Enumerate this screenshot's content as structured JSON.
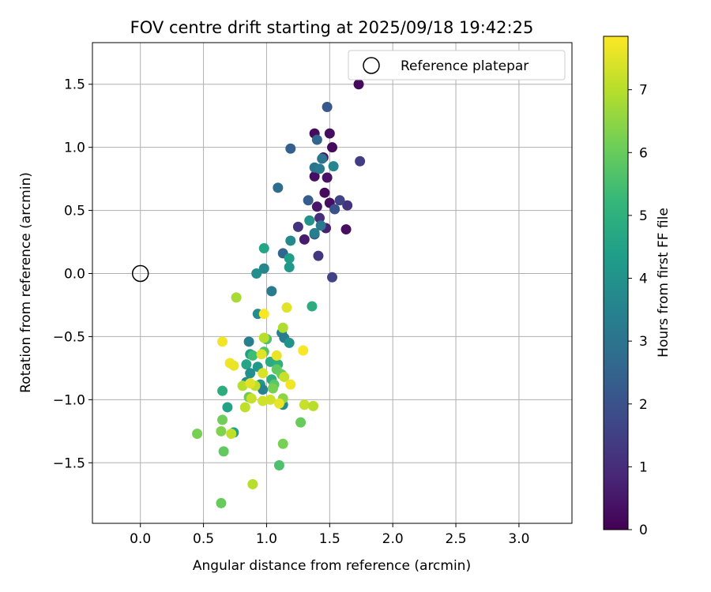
{
  "chart_data": {
    "type": "scatter",
    "title": "FOV centre drift starting at 2025/09/18 19:42:25",
    "xlabel": "Angular distance from reference (arcmin)",
    "ylabel": "Rotation from reference (arcmin)",
    "xlim": [
      -0.38,
      3.42
    ],
    "ylim": [
      -1.98,
      1.83
    ],
    "xticks": [
      "0.0",
      "0.5",
      "1.0",
      "1.5",
      "2.0",
      "2.5",
      "3.0"
    ],
    "yticks": [
      "-1.5",
      "-1.0",
      "-0.5",
      "0.0",
      "0.5",
      "1.0",
      "1.5"
    ],
    "grid": true,
    "legend": {
      "position": "top-right",
      "label": "Reference platepar"
    },
    "reference_point": {
      "x": 0.0,
      "y": 0.0
    },
    "colorbar": {
      "label": "Hours from first FF file",
      "min": 0,
      "max": 7.85,
      "ticks": [
        "0",
        "1",
        "2",
        "3",
        "4",
        "5",
        "6",
        "7"
      ],
      "colormap": [
        "#440154",
        "#482878",
        "#3e4989",
        "#31688e",
        "#26828e",
        "#1f9e89",
        "#35b779",
        "#6ece58",
        "#b5de2b",
        "#fde725"
      ]
    },
    "points": [
      {
        "x": 1.73,
        "y": 1.5,
        "t": 0.2
      },
      {
        "x": 1.38,
        "y": 1.11,
        "t": 0.2
      },
      {
        "x": 1.5,
        "y": 1.11,
        "t": 0.3
      },
      {
        "x": 1.52,
        "y": 1.0,
        "t": 0.2
      },
      {
        "x": 1.45,
        "y": 0.92,
        "t": 0.4
      },
      {
        "x": 1.38,
        "y": 0.77,
        "t": 0.3
      },
      {
        "x": 1.48,
        "y": 0.76,
        "t": 0.4
      },
      {
        "x": 1.46,
        "y": 0.64,
        "t": 0.2
      },
      {
        "x": 1.5,
        "y": 0.56,
        "t": 0.3
      },
      {
        "x": 1.4,
        "y": 0.53,
        "t": 0.5
      },
      {
        "x": 1.42,
        "y": 0.44,
        "t": 1.0
      },
      {
        "x": 1.3,
        "y": 0.27,
        "t": 0.6
      },
      {
        "x": 1.47,
        "y": 0.36,
        "t": 0.7
      },
      {
        "x": 1.63,
        "y": 0.35,
        "t": 0.3
      },
      {
        "x": 1.25,
        "y": 0.37,
        "t": 1.2
      },
      {
        "x": 1.41,
        "y": 0.14,
        "t": 1.3
      },
      {
        "x": 1.52,
        "y": -0.03,
        "t": 1.6
      },
      {
        "x": 1.74,
        "y": 0.89,
        "t": 1.4
      },
      {
        "x": 1.64,
        "y": 0.54,
        "t": 1.2
      },
      {
        "x": 1.58,
        "y": 0.58,
        "t": 1.6
      },
      {
        "x": 1.54,
        "y": 0.51,
        "t": 2.0
      },
      {
        "x": 1.48,
        "y": 1.32,
        "t": 2.2
      },
      {
        "x": 1.19,
        "y": 0.99,
        "t": 2.4
      },
      {
        "x": 1.4,
        "y": 1.06,
        "t": 2.6
      },
      {
        "x": 1.09,
        "y": 0.68,
        "t": 2.8
      },
      {
        "x": 1.33,
        "y": 0.58,
        "t": 2.3
      },
      {
        "x": 1.38,
        "y": 0.31,
        "t": 2.0
      },
      {
        "x": 1.13,
        "y": 0.16,
        "t": 2.5
      },
      {
        "x": 1.38,
        "y": 0.84,
        "t": 3.0
      },
      {
        "x": 1.42,
        "y": 0.83,
        "t": 3.2
      },
      {
        "x": 1.44,
        "y": 0.91,
        "t": 3.1
      },
      {
        "x": 1.53,
        "y": 0.85,
        "t": 3.6
      },
      {
        "x": 1.43,
        "y": 0.38,
        "t": 3.2
      },
      {
        "x": 1.38,
        "y": 0.32,
        "t": 3.4
      },
      {
        "x": 1.34,
        "y": 0.42,
        "t": 4.0
      },
      {
        "x": 1.19,
        "y": 0.26,
        "t": 3.7
      },
      {
        "x": 0.98,
        "y": 0.04,
        "t": 3.6
      },
      {
        "x": 0.92,
        "y": 0.0,
        "t": 3.9
      },
      {
        "x": 1.04,
        "y": -0.14,
        "t": 3.3
      },
      {
        "x": 0.98,
        "y": 0.2,
        "t": 4.6
      },
      {
        "x": 1.18,
        "y": 0.12,
        "t": 4.4
      },
      {
        "x": 1.18,
        "y": 0.05,
        "t": 4.2
      },
      {
        "x": 0.93,
        "y": -0.32,
        "t": 3.8
      },
      {
        "x": 0.86,
        "y": -0.54,
        "t": 3.4
      },
      {
        "x": 1.12,
        "y": -0.47,
        "t": 3.5
      },
      {
        "x": 1.14,
        "y": -0.51,
        "t": 3.3
      },
      {
        "x": 1.0,
        "y": -0.52,
        "t": 3.6
      },
      {
        "x": 1.18,
        "y": -0.55,
        "t": 4.0
      },
      {
        "x": 0.87,
        "y": -0.64,
        "t": 4.4
      },
      {
        "x": 0.84,
        "y": -0.72,
        "t": 4.6
      },
      {
        "x": 0.93,
        "y": -0.74,
        "t": 4.2
      },
      {
        "x": 0.87,
        "y": -0.79,
        "t": 3.9
      },
      {
        "x": 0.84,
        "y": -0.86,
        "t": 3.7
      },
      {
        "x": 0.95,
        "y": -0.88,
        "t": 4.1
      },
      {
        "x": 0.97,
        "y": -0.92,
        "t": 3.5
      },
      {
        "x": 1.03,
        "y": -0.7,
        "t": 4.8
      },
      {
        "x": 1.09,
        "y": -0.72,
        "t": 5.0
      },
      {
        "x": 1.04,
        "y": -0.84,
        "t": 4.9
      },
      {
        "x": 1.36,
        "y": -0.26,
        "t": 4.9
      },
      {
        "x": 0.65,
        "y": -0.93,
        "t": 4.9
      },
      {
        "x": 0.69,
        "y": -1.06,
        "t": 4.5
      },
      {
        "x": 0.74,
        "y": -1.26,
        "t": 4.4
      },
      {
        "x": 1.13,
        "y": -1.04,
        "t": 3.8
      },
      {
        "x": 1.0,
        "y": -0.52,
        "t": 5.6
      },
      {
        "x": 0.89,
        "y": -0.65,
        "t": 5.4
      },
      {
        "x": 0.98,
        "y": -0.62,
        "t": 5.7
      },
      {
        "x": 1.08,
        "y": -0.76,
        "t": 5.9
      },
      {
        "x": 1.06,
        "y": -0.88,
        "t": 5.8
      },
      {
        "x": 1.12,
        "y": -0.8,
        "t": 6.0
      },
      {
        "x": 0.86,
        "y": -0.98,
        "t": 6.0
      },
      {
        "x": 1.05,
        "y": -0.91,
        "t": 6.2
      },
      {
        "x": 0.65,
        "y": -1.16,
        "t": 6.1
      },
      {
        "x": 0.45,
        "y": -1.27,
        "t": 6.2
      },
      {
        "x": 0.64,
        "y": -1.25,
        "t": 6.3
      },
      {
        "x": 0.66,
        "y": -1.41,
        "t": 5.9
      },
      {
        "x": 0.64,
        "y": -1.82,
        "t": 6.0
      },
      {
        "x": 1.1,
        "y": -1.52,
        "t": 5.6
      },
      {
        "x": 1.13,
        "y": -1.35,
        "t": 6.2
      },
      {
        "x": 1.27,
        "y": -1.18,
        "t": 6.0
      },
      {
        "x": 1.13,
        "y": -0.99,
        "t": 6.5
      },
      {
        "x": 1.13,
        "y": -0.43,
        "t": 6.9
      },
      {
        "x": 0.76,
        "y": -0.19,
        "t": 6.8
      },
      {
        "x": 0.98,
        "y": -0.51,
        "t": 7.0
      },
      {
        "x": 0.91,
        "y": -0.89,
        "t": 7.1
      },
      {
        "x": 0.81,
        "y": -0.89,
        "t": 7.0
      },
      {
        "x": 0.88,
        "y": -0.99,
        "t": 7.2
      },
      {
        "x": 0.83,
        "y": -1.06,
        "t": 7.1
      },
      {
        "x": 1.14,
        "y": -0.82,
        "t": 7.2
      },
      {
        "x": 1.03,
        "y": -1.0,
        "t": 7.3
      },
      {
        "x": 1.3,
        "y": -1.04,
        "t": 7.2
      },
      {
        "x": 1.37,
        "y": -1.05,
        "t": 7.0
      },
      {
        "x": 0.72,
        "y": -1.27,
        "t": 7.1
      },
      {
        "x": 0.89,
        "y": -1.67,
        "t": 7.0
      },
      {
        "x": 0.97,
        "y": -0.79,
        "t": 7.4
      },
      {
        "x": 0.97,
        "y": -1.01,
        "t": 7.3
      },
      {
        "x": 1.1,
        "y": -1.03,
        "t": 7.6
      },
      {
        "x": 0.65,
        "y": -0.54,
        "t": 7.7
      },
      {
        "x": 0.71,
        "y": -0.71,
        "t": 7.7
      },
      {
        "x": 0.74,
        "y": -0.73,
        "t": 7.6
      },
      {
        "x": 0.96,
        "y": -0.64,
        "t": 7.5
      },
      {
        "x": 1.08,
        "y": -0.65,
        "t": 7.6
      },
      {
        "x": 1.29,
        "y": -0.61,
        "t": 7.8
      },
      {
        "x": 1.16,
        "y": -0.27,
        "t": 7.5
      },
      {
        "x": 0.98,
        "y": -0.32,
        "t": 7.8
      },
      {
        "x": 1.19,
        "y": -0.88,
        "t": 7.7
      },
      {
        "x": 0.87,
        "y": -0.87,
        "t": 7.5
      }
    ]
  }
}
